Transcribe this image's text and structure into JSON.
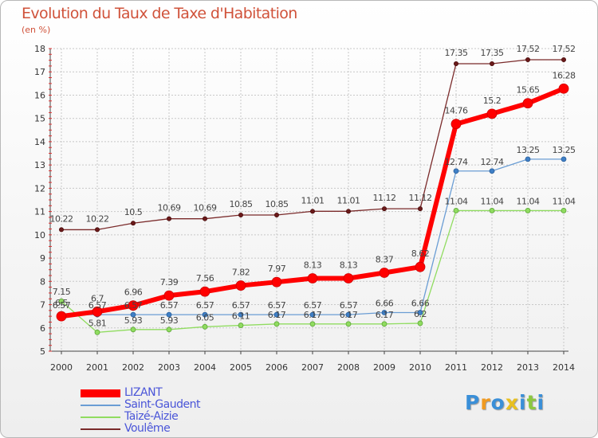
{
  "chart_data": {
    "type": "line",
    "title": "Evolution du Taux de Taxe d'Habitation",
    "ylabel": "(en %)",
    "xlabel": "",
    "x": [
      "2000",
      "2001",
      "2002",
      "2003",
      "2004",
      "2005",
      "2006",
      "2007",
      "2008",
      "2009",
      "2010",
      "2011",
      "2012",
      "2013",
      "2014"
    ],
    "ylim": [
      5,
      18
    ],
    "yticks": [
      "5",
      "6",
      "7",
      "8",
      "9",
      "10",
      "11",
      "12",
      "13",
      "14",
      "15",
      "16",
      "17",
      "18"
    ],
    "grid": true,
    "legend_position": "bottom-left",
    "series": [
      {
        "name": "LIZANT",
        "color": "#ff0000",
        "labels": [
          "6.5",
          "6.7",
          "6.96",
          "7.39",
          "7.56",
          "7.82",
          "7.97",
          "8.13",
          "8.13",
          "8.37",
          "8.62",
          "14.76",
          "15.2",
          "15.65",
          "16.28"
        ],
        "values": [
          6.5,
          6.7,
          6.96,
          7.39,
          7.56,
          7.82,
          7.97,
          8.13,
          8.13,
          8.37,
          8.62,
          14.76,
          15.2,
          15.65,
          16.28
        ]
      },
      {
        "name": "Saint-Gaudent",
        "color": "#6a9dd4",
        "labels": [
          "6.57",
          "6.57",
          "6.57",
          "6.57",
          "6.57",
          "6.57",
          "6.57",
          "6.57",
          "6.57",
          "6.66",
          "6.66",
          "12.74",
          "12.74",
          "13.25",
          "13.25"
        ],
        "values": [
          6.57,
          6.57,
          6.57,
          6.57,
          6.57,
          6.57,
          6.57,
          6.57,
          6.57,
          6.66,
          6.66,
          12.74,
          12.74,
          13.25,
          13.25
        ]
      },
      {
        "name": "Taizé-Aizie",
        "color": "#90dc60",
        "labels": [
          "7.15",
          "5.81",
          "5.93",
          "5.93",
          "6.05",
          "6.11",
          "6.17",
          "6.17",
          "6.17",
          "6.17",
          "6.2",
          "11.04",
          "11.04",
          "11.04",
          "11.04"
        ],
        "values": [
          7.15,
          5.81,
          5.93,
          5.93,
          6.05,
          6.11,
          6.17,
          6.17,
          6.17,
          6.17,
          6.2,
          11.04,
          11.04,
          11.04,
          11.04
        ]
      },
      {
        "name": "Voulême",
        "color": "#7a2a2a",
        "labels": [
          "10.22",
          "10.22",
          "10.5",
          "10.69",
          "10.69",
          "10.85",
          "10.85",
          "11.01",
          "11.01",
          "11.12",
          "11.12",
          "17.35",
          "17.35",
          "17.52",
          "17.52"
        ],
        "values": [
          10.22,
          10.22,
          10.5,
          10.69,
          10.69,
          10.85,
          10.85,
          11.01,
          11.01,
          11.12,
          11.12,
          17.35,
          17.35,
          17.52,
          17.52
        ]
      }
    ]
  },
  "legend": {
    "items": [
      {
        "label": "LIZANT",
        "color": "#ff0000"
      },
      {
        "label": "Saint-Gaudent",
        "color": "#6a9dd4"
      },
      {
        "label": "Taizé-Aizie",
        "color": "#90dc60"
      },
      {
        "label": "Voulême",
        "color": "#7a2a2a"
      }
    ]
  },
  "logo": {
    "letters": [
      "P",
      "r",
      "o",
      "x",
      "i",
      "t",
      "i"
    ],
    "colors": [
      "#3a8fd8",
      "#f09a20",
      "#3a8fd8",
      "#e8c020",
      "#3a8fd8",
      "#8cc840",
      "#3a8fd8"
    ]
  }
}
